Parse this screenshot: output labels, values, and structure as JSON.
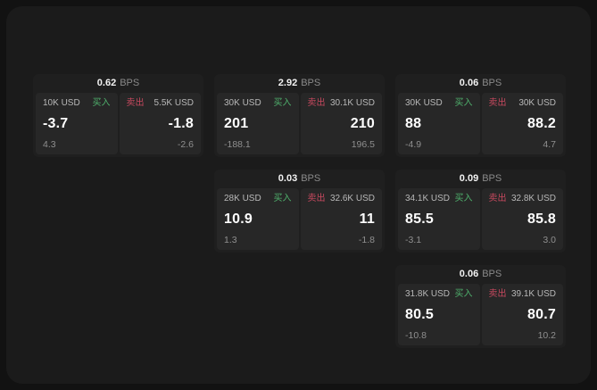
{
  "colors": {
    "buy_accent": "#4fb06c",
    "sell_accent": "#c7495f",
    "card_bg": "#1f1f1f",
    "panel_bg": "#272727",
    "screen_bg": "#1b1b1b"
  },
  "cards": [
    {
      "bps": "0.62",
      "unit": "BPS",
      "buy": {
        "size": "10K USD",
        "label": "买入",
        "value": "-3.7",
        "sub": "4.3"
      },
      "sell": {
        "label": "卖出",
        "size": "5.5K USD",
        "value": "-1.8",
        "sub": "-2.6"
      }
    },
    {
      "bps": "2.92",
      "unit": "BPS",
      "buy": {
        "size": "30K USD",
        "label": "买入",
        "value": "201",
        "sub": "-188.1"
      },
      "sell": {
        "label": "卖出",
        "size": "30.1K USD",
        "value": "210",
        "sub": "196.5"
      }
    },
    {
      "bps": "0.06",
      "unit": "BPS",
      "buy": {
        "size": "30K USD",
        "label": "买入",
        "value": "88",
        "sub": "-4.9"
      },
      "sell": {
        "label": "卖出",
        "size": "30K USD",
        "value": "88.2",
        "sub": "4.7"
      }
    },
    {
      "bps": "0.03",
      "unit": "BPS",
      "buy": {
        "size": "28K USD",
        "label": "买入",
        "value": "10.9",
        "sub": "1.3"
      },
      "sell": {
        "label": "卖出",
        "size": "32.6K USD",
        "value": "11",
        "sub": "-1.8"
      }
    },
    {
      "bps": "0.09",
      "unit": "BPS",
      "buy": {
        "size": "34.1K USD",
        "label": "买入",
        "value": "85.5",
        "sub": "-3.1"
      },
      "sell": {
        "label": "卖出",
        "size": "32.8K USD",
        "value": "85.8",
        "sub": "3.0"
      }
    },
    {
      "bps": "0.06",
      "unit": "BPS",
      "buy": {
        "size": "31.8K USD",
        "label": "买入",
        "value": "80.5",
        "sub": "-10.8"
      },
      "sell": {
        "label": "卖出",
        "size": "39.1K USD",
        "value": "80.7",
        "sub": "10.2"
      }
    }
  ]
}
